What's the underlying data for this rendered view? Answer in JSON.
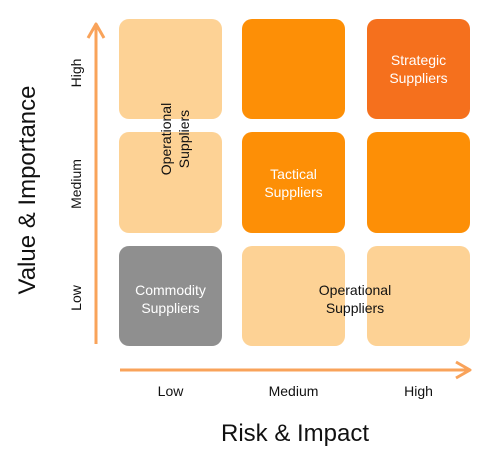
{
  "axes": {
    "x_title": "Risk & Impact",
    "y_title": "Value & Importance",
    "x_ticks": [
      "Low",
      "Medium",
      "High"
    ],
    "y_ticks": [
      "Low",
      "Medium",
      "High"
    ]
  },
  "labels": {
    "strategic": "Strategic\nSuppliers",
    "tactical": "Tactical\nSuppliers",
    "commodity": "Commodity\nSuppliers",
    "operational_bottom": "Operational\nSuppliers",
    "operational_rotated": "Operational\nSuppliers"
  },
  "colors": {
    "light": "#fdd295",
    "orange": "#fd8f06",
    "dark_orange": "#f5701d",
    "grey": "#8f8f8f",
    "arrow": "#f9a35a"
  }
}
